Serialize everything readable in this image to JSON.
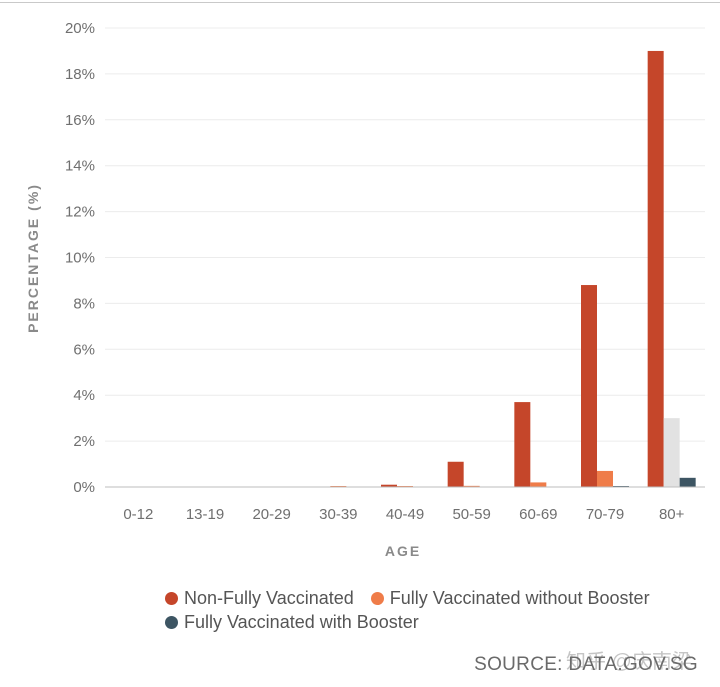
{
  "chart_data": {
    "type": "bar",
    "title": "",
    "xlabel": "AGE",
    "ylabel": "PERCENTAGE (%)",
    "categories": [
      "0-12",
      "13-19",
      "20-29",
      "30-39",
      "40-49",
      "50-59",
      "60-69",
      "70-79",
      "80+"
    ],
    "ylim": [
      0,
      20
    ],
    "yticks": [
      "0%",
      "2%",
      "4%",
      "6%",
      "8%",
      "10%",
      "12%",
      "14%",
      "16%",
      "18%",
      "20%"
    ],
    "grid": true,
    "legend_position": "bottom",
    "series": [
      {
        "name": "Non-Fully Vaccinated",
        "color": "#c5462a",
        "values": [
          0,
          0,
          0,
          0,
          0.1,
          1.1,
          3.7,
          8.8,
          19.0
        ]
      },
      {
        "name": "Fully Vaccinated without Booster",
        "color": "#ef7c49",
        "values": [
          0,
          0,
          0,
          0.02,
          0.02,
          0.05,
          0.2,
          0.7,
          3.0
        ]
      },
      {
        "name": "Fully Vaccinated with Booster",
        "color": "#3d5563",
        "values": [
          0,
          0,
          0,
          0,
          0,
          0,
          0,
          0.02,
          0.4
        ]
      }
    ]
  },
  "source_text": "SOURCE: DATA.GOV.SG",
  "watermark_text": "知乎 @庆南梁"
}
